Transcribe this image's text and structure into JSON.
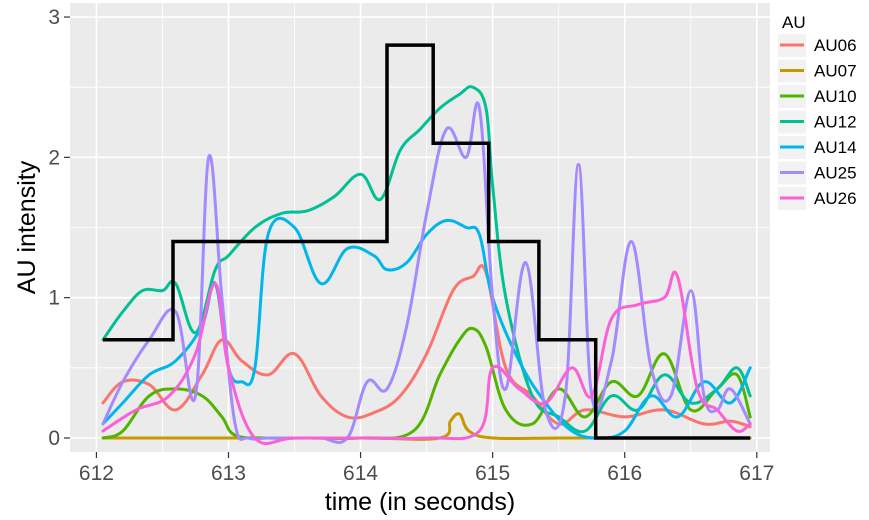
{
  "chart_data": {
    "type": "line",
    "title": "",
    "xlabel": "time (in seconds)",
    "ylabel": "AU intensity",
    "xlim": [
      611.8,
      617.1
    ],
    "ylim": [
      -0.1,
      3.1
    ],
    "xticks": [
      "612",
      "613",
      "614",
      "615",
      "616",
      "617"
    ],
    "yticks": [
      "0",
      "1",
      "2",
      "3"
    ],
    "grid": true,
    "legend_title": "AU",
    "legend_position": "right",
    "series": [
      {
        "name": "AU06",
        "color": "#F8766D",
        "x": [
          612.05,
          612.2,
          612.4,
          612.6,
          612.8,
          612.95,
          613.1,
          613.3,
          613.5,
          613.7,
          613.9,
          614.1,
          614.3,
          614.5,
          614.7,
          614.85,
          614.95,
          615.1,
          615.3,
          615.5,
          615.7,
          616.0,
          616.3,
          616.6,
          616.8,
          616.95
        ],
        "y": [
          0.25,
          0.4,
          0.38,
          0.2,
          0.45,
          0.7,
          0.55,
          0.45,
          0.6,
          0.3,
          0.15,
          0.18,
          0.3,
          0.6,
          1.05,
          1.15,
          1.18,
          0.5,
          0.3,
          0.1,
          0.2,
          0.15,
          0.2,
          0.1,
          0.12,
          0.08
        ]
      },
      {
        "name": "AU07",
        "color": "#C49A00",
        "x": [
          612.05,
          613.0,
          614.0,
          614.6,
          614.68,
          614.75,
          614.82,
          615.0,
          615.5,
          616.0,
          616.5,
          616.95
        ],
        "y": [
          0,
          0,
          0,
          0,
          0.12,
          0.17,
          0.05,
          0,
          0,
          0,
          0,
          0
        ]
      },
      {
        "name": "AU10",
        "color": "#53B400",
        "x": [
          612.05,
          612.2,
          612.4,
          612.6,
          612.8,
          612.95,
          613.05,
          613.3,
          613.6,
          614.0,
          614.4,
          614.6,
          614.75,
          614.85,
          614.95,
          615.1,
          615.3,
          615.5,
          615.7,
          615.9,
          616.1,
          616.3,
          616.5,
          616.7,
          616.85,
          616.95
        ],
        "y": [
          0,
          0.05,
          0.3,
          0.35,
          0.3,
          0.15,
          0.02,
          0,
          0,
          0,
          0.05,
          0.45,
          0.7,
          0.78,
          0.65,
          0.2,
          0.1,
          0.35,
          0.15,
          0.4,
          0.3,
          0.6,
          0.2,
          0.35,
          0.45,
          0.15
        ]
      },
      {
        "name": "AU12",
        "color": "#00C094",
        "x": [
          612.05,
          612.2,
          612.35,
          612.5,
          612.6,
          612.75,
          612.9,
          613.0,
          613.2,
          613.4,
          613.6,
          613.8,
          614.0,
          614.15,
          614.3,
          614.45,
          614.6,
          614.75,
          614.85,
          614.95,
          615.0,
          615.1,
          615.3,
          615.5,
          615.7,
          615.9,
          616.1,
          616.3,
          616.5,
          616.7,
          616.85,
          616.95
        ],
        "y": [
          0.7,
          0.9,
          1.05,
          1.05,
          1.1,
          0.75,
          1.2,
          1.3,
          1.5,
          1.6,
          1.62,
          1.72,
          1.88,
          1.7,
          2.05,
          2.2,
          2.35,
          2.45,
          2.5,
          2.35,
          1.8,
          1.0,
          0.3,
          0.15,
          0.05,
          0.3,
          0.2,
          0.45,
          0.25,
          0.35,
          0.5,
          0.3
        ]
      },
      {
        "name": "AU14",
        "color": "#00B6EB",
        "x": [
          612.05,
          612.2,
          612.4,
          612.6,
          612.8,
          612.9,
          613.0,
          613.1,
          613.2,
          613.3,
          613.5,
          613.7,
          613.9,
          614.1,
          614.2,
          614.35,
          614.5,
          614.65,
          614.8,
          614.9,
          615.0,
          615.2,
          615.4,
          615.6,
          615.8,
          616.0,
          616.2,
          616.4,
          616.6,
          616.8,
          616.95
        ],
        "y": [
          0.1,
          0.25,
          0.45,
          0.55,
          0.8,
          1.1,
          0.5,
          0.4,
          0.5,
          1.45,
          1.5,
          1.1,
          1.35,
          1.3,
          1.2,
          1.25,
          1.45,
          1.55,
          1.5,
          1.45,
          1.0,
          0.55,
          0.25,
          0.05,
          0.0,
          0.05,
          0.3,
          0.15,
          0.4,
          0.25,
          0.5
        ]
      },
      {
        "name": "AU25",
        "color": "#A58AFF",
        "x": [
          612.05,
          612.2,
          612.4,
          612.6,
          612.75,
          612.85,
          612.95,
          613.05,
          613.15,
          613.3,
          613.5,
          613.7,
          613.9,
          614.05,
          614.2,
          614.35,
          614.5,
          614.65,
          614.8,
          614.9,
          615.0,
          615.1,
          615.25,
          615.4,
          615.55,
          615.65,
          615.75,
          615.9,
          616.05,
          616.2,
          616.35,
          616.5,
          616.6,
          616.7,
          616.8,
          616.95
        ],
        "y": [
          0.1,
          0.4,
          0.7,
          0.9,
          0.3,
          2.0,
          1.0,
          0.1,
          0,
          0,
          0,
          0,
          0,
          0.4,
          0.35,
          0.8,
          1.6,
          2.2,
          2.0,
          2.35,
          1.0,
          0.35,
          1.25,
          0.2,
          0.3,
          1.95,
          0.3,
          0.55,
          1.4,
          0.5,
          0.3,
          1.05,
          0.3,
          0.2,
          0.35,
          0.1
        ]
      },
      {
        "name": "AU26",
        "color": "#FB61D7",
        "x": [
          612.05,
          612.3,
          612.55,
          612.75,
          612.9,
          613.0,
          613.2,
          613.5,
          614.0,
          614.5,
          614.9,
          615.0,
          615.2,
          615.4,
          615.6,
          615.75,
          615.9,
          616.1,
          616.3,
          616.4,
          616.55,
          616.7,
          616.85,
          616.95
        ],
        "y": [
          0.05,
          0.2,
          0.3,
          0.6,
          1.1,
          0.5,
          0,
          0,
          0,
          0,
          0.05,
          0.5,
          0.35,
          0.25,
          0.5,
          0.3,
          0.85,
          0.95,
          1.0,
          1.15,
          0.35,
          0.2,
          0.05,
          0.1
        ]
      }
    ],
    "reference_line": {
      "color": "#000000",
      "x": [
        612.05,
        612.58,
        612.58,
        614.2,
        614.2,
        614.55,
        614.55,
        614.97,
        614.97,
        615.35,
        615.35,
        615.78,
        615.78,
        616.95
      ],
      "y": [
        0.7,
        0.7,
        1.4,
        1.4,
        2.8,
        2.8,
        2.1,
        2.1,
        1.4,
        1.4,
        0.7,
        0.7,
        0,
        0
      ]
    }
  }
}
